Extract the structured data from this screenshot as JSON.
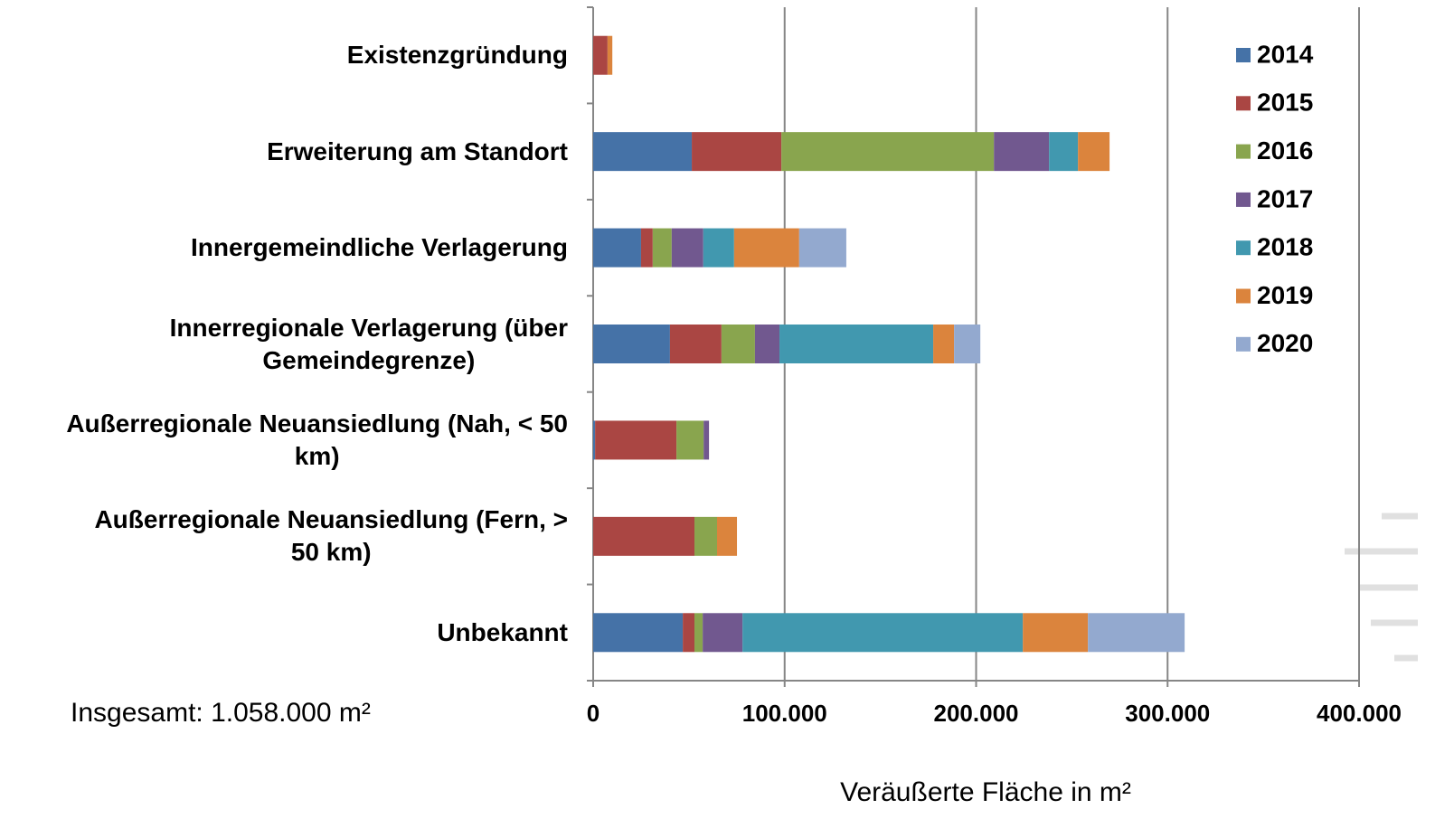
{
  "chart_data": {
    "type": "stacked-bar-horizontal",
    "categories": [
      "Existenzgründung",
      "Erweiterung am Standort",
      "Innergemeindliche Verlagerung",
      "Innerregionale Verlagerung (über\nGemeindegrenze)",
      "Außerregionale Neuansiedlung (Nah, < 50\nkm)",
      "Außerregionale Neuansiedlung (Fern, >\n50 km)",
      "Unbekannt"
    ],
    "series": [
      {
        "name": "2014",
        "color": "#4572a7",
        "values": [
          0,
          51500,
          25000,
          40100,
          1000,
          0,
          46800
        ]
      },
      {
        "name": "2015",
        "color": "#aa4643",
        "values": [
          7500,
          46800,
          6100,
          26900,
          42500,
          52900,
          6100
        ]
      },
      {
        "name": "2016",
        "color": "#89a54e",
        "values": [
          0,
          111000,
          9900,
          17500,
          14200,
          11800,
          4300
        ]
      },
      {
        "name": "2017",
        "color": "#71588f",
        "values": [
          0,
          28800,
          16500,
          12800,
          2800,
          0,
          20800
        ]
      },
      {
        "name": "2018",
        "color": "#4198af",
        "values": [
          0,
          15100,
          16100,
          80300,
          0,
          0,
          146400
        ]
      },
      {
        "name": "2019",
        "color": "#db843d",
        "values": [
          2500,
          16500,
          34000,
          10900,
          0,
          10400,
          34000
        ]
      },
      {
        "name": "2020",
        "color": "#93a9cf",
        "values": [
          0,
          0,
          24600,
          13700,
          0,
          0,
          50500
        ]
      }
    ],
    "xlim": [
      0,
      400000
    ],
    "xticks": [
      0,
      {
        "value": 100000,
        "label": "100.000"
      },
      {
        "value": 200000,
        "label": "200.000"
      },
      {
        "value": 300000,
        "label": "300.000"
      },
      {
        "value": 400000,
        "label": "400.000"
      }
    ],
    "grid": true,
    "legend": "right",
    "xlabel": "Veräußerte Fläche in m²",
    "annotation": "Insgesamt: 1.058.000 m²"
  }
}
